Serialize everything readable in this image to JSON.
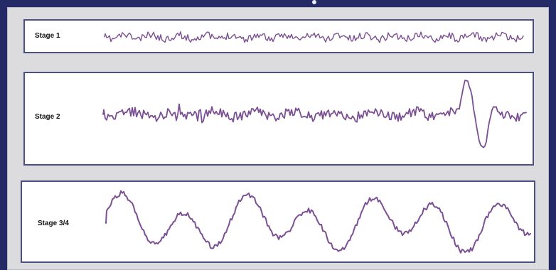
{
  "stages": [
    {
      "label": "Stage 1"
    },
    {
      "label": "Stage 2"
    },
    {
      "label": "Stage 3/4"
    }
  ],
  "colors": {
    "background": "#232a66",
    "frame": "#dcdcde",
    "panel_border": "#4b4f86",
    "waveform": "#7b4f93"
  }
}
